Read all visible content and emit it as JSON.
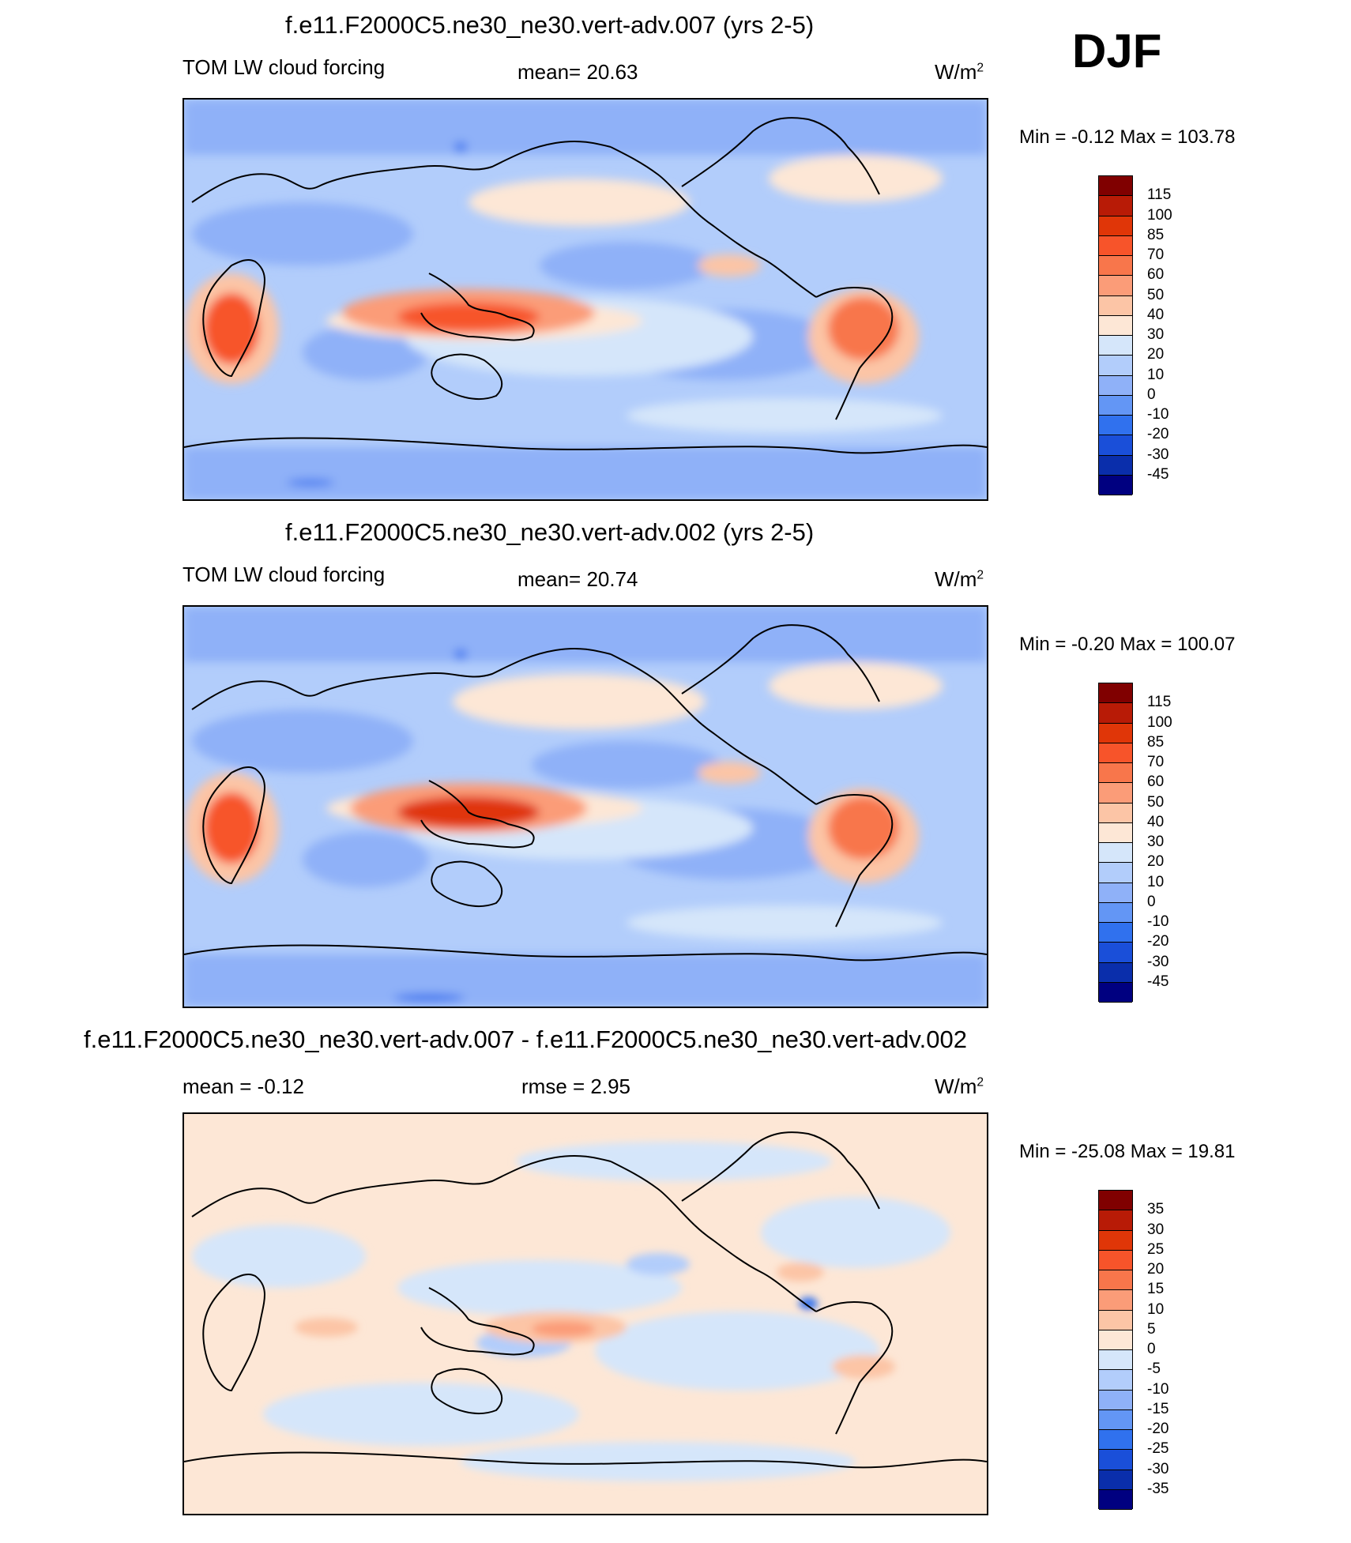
{
  "season": "DJF",
  "chart_data": [
    {
      "type": "heatmap",
      "title": "f.e11.F2000C5.ne30_ne30.vert-adv.007 (yrs 2-5)",
      "variable": "TOM LW cloud forcing",
      "mean_label": "mean=  20.63",
      "units_base": "W/m",
      "units_exp": "2",
      "minmax": "Min =  -0.12 Max = 103.78",
      "min": -0.12,
      "max": 103.78,
      "mean": 20.63,
      "colorbar_levels": [
        "115",
        "100",
        "85",
        "70",
        "60",
        "50",
        "40",
        "30",
        "20",
        "10",
        "0",
        "-10",
        "-20",
        "-30",
        "-45"
      ],
      "colorbar_colors": [
        "#800000",
        "#b81b06",
        "#e03608",
        "#f7542a",
        "#f8764b",
        "#fb9c78",
        "#fcc5a6",
        "#fde7d6",
        "#d5e6fa",
        "#b2cdfb",
        "#8fb1f8",
        "#6396f5",
        "#3071ee",
        "#1a4fd9",
        "#0a2eab",
        "#000080"
      ]
    },
    {
      "type": "heatmap",
      "title": "f.e11.F2000C5.ne30_ne30.vert-adv.002 (yrs 2-5)",
      "variable": "TOM LW cloud forcing",
      "mean_label": "mean=  20.74",
      "units_base": "W/m",
      "units_exp": "2",
      "minmax": "Min =  -0.20 Max = 100.07",
      "min": -0.2,
      "max": 100.07,
      "mean": 20.74,
      "colorbar_levels": [
        "115",
        "100",
        "85",
        "70",
        "60",
        "50",
        "40",
        "30",
        "20",
        "10",
        "0",
        "-10",
        "-20",
        "-30",
        "-45"
      ],
      "colorbar_colors": [
        "#800000",
        "#b81b06",
        "#e03608",
        "#f7542a",
        "#f8764b",
        "#fb9c78",
        "#fcc5a6",
        "#fde7d6",
        "#d5e6fa",
        "#b2cdfb",
        "#8fb1f8",
        "#6396f5",
        "#3071ee",
        "#1a4fd9",
        "#0a2eab",
        "#000080"
      ]
    },
    {
      "type": "heatmap",
      "title": "f.e11.F2000C5.ne30_ne30.vert-adv.007 - f.e11.F2000C5.ne30_ne30.vert-adv.002",
      "mean_label": "mean =  -0.12",
      "rmse_label": "rmse =   2.95",
      "units_base": "W/m",
      "units_exp": "2",
      "minmax": "Min = -25.08 Max =  19.81",
      "min": -25.08,
      "max": 19.81,
      "mean": -0.12,
      "rmse": 2.95,
      "colorbar_levels": [
        "35",
        "30",
        "25",
        "20",
        "15",
        "10",
        "5",
        "0",
        "-5",
        "-10",
        "-15",
        "-20",
        "-25",
        "-30",
        "-35"
      ],
      "colorbar_colors": [
        "#800000",
        "#b81b06",
        "#e03608",
        "#f7542a",
        "#f8764b",
        "#fb9c78",
        "#fcc5a6",
        "#fde7d6",
        "#d5e6fa",
        "#b2cdfb",
        "#8fb1f8",
        "#6396f5",
        "#3071ee",
        "#1a4fd9",
        "#0a2eab",
        "#000080"
      ]
    }
  ]
}
